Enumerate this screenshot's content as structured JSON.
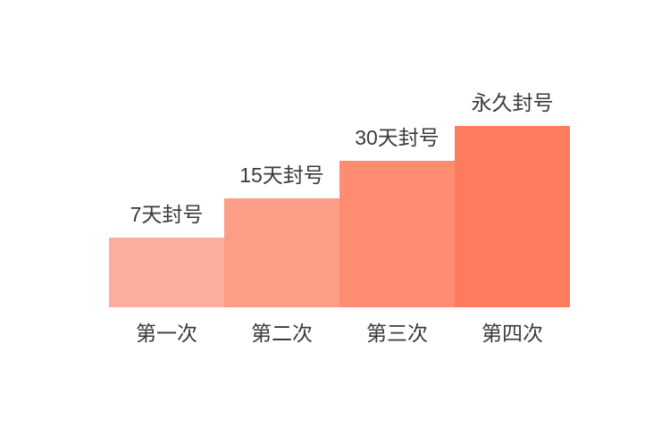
{
  "page": {
    "background_color": "#ffffff",
    "text_color": "#3b3b3b"
  },
  "chart_data": {
    "type": "bar",
    "title": "",
    "xlabel": "",
    "ylabel": "",
    "grid": false,
    "legend": false,
    "axes_shown": false,
    "categories": [
      "第一次",
      "第二次",
      "第三次",
      "第四次"
    ],
    "bar_labels": [
      "7天封号",
      "15天封号",
      "30天封号",
      "永久封号"
    ],
    "values": [
      78,
      122,
      164,
      203
    ],
    "colors": [
      "#fcad9c",
      "#fc9d88",
      "#fd8c72",
      "#fd7c5e"
    ],
    "label_color": "#3b3b3b"
  }
}
